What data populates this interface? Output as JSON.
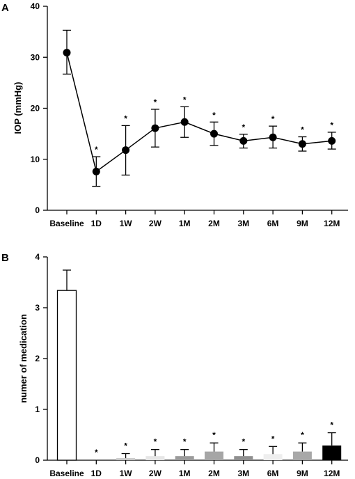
{
  "chart_data": [
    {
      "panel": "A",
      "type": "line",
      "title": "",
      "xlabel": "",
      "ylabel": "IOP (mmHg)",
      "categories": [
        "Baseline",
        "1D",
        "1W",
        "2W",
        "1M",
        "2M",
        "3M",
        "6M",
        "9M",
        "12M"
      ],
      "ylim": [
        0,
        40
      ],
      "yticks": [
        0,
        10,
        20,
        30,
        40
      ],
      "grid": false,
      "color": "#000000",
      "values": [
        30.9,
        7.6,
        11.8,
        16.1,
        17.3,
        15.0,
        13.6,
        14.3,
        13.0,
        13.6
      ],
      "err_upper": [
        35.3,
        10.5,
        16.6,
        19.8,
        20.3,
        17.3,
        14.9,
        16.5,
        14.4,
        15.3
      ],
      "err_lower": [
        26.7,
        4.7,
        6.9,
        12.4,
        14.3,
        12.7,
        12.2,
        12.2,
        11.6,
        12.0
      ],
      "significance": [
        "",
        "*",
        "*",
        "*",
        "*",
        "*",
        "*",
        "*",
        "*",
        "*"
      ]
    },
    {
      "panel": "B",
      "type": "bar",
      "title": "",
      "xlabel": "",
      "ylabel": "numer of medication",
      "categories": [
        "Baseline",
        "1D",
        "1W",
        "2W",
        "1M",
        "2M",
        "3M",
        "6M",
        "9M",
        "12M"
      ],
      "ylim": [
        0,
        4
      ],
      "yticks": [
        0,
        1,
        2,
        3,
        4
      ],
      "grid": false,
      "values": [
        3.34,
        0.0,
        0.04,
        0.08,
        0.08,
        0.17,
        0.08,
        0.12,
        0.17,
        0.29
      ],
      "err_upper": [
        3.74,
        0.0,
        0.13,
        0.21,
        0.21,
        0.34,
        0.21,
        0.27,
        0.34,
        0.54
      ],
      "bar_colors": [
        "#ffffff",
        "#ffffff",
        "#c8c8c8",
        "#e6e6e6",
        "#9b9b9b",
        "#a6a6a6",
        "#8f8f8f",
        "#eeeeee",
        "#a8a8a8",
        "#000000"
      ],
      "significance": [
        "",
        "*",
        "*",
        "*",
        "*",
        "*",
        "*",
        "*",
        "*",
        "*"
      ]
    }
  ]
}
